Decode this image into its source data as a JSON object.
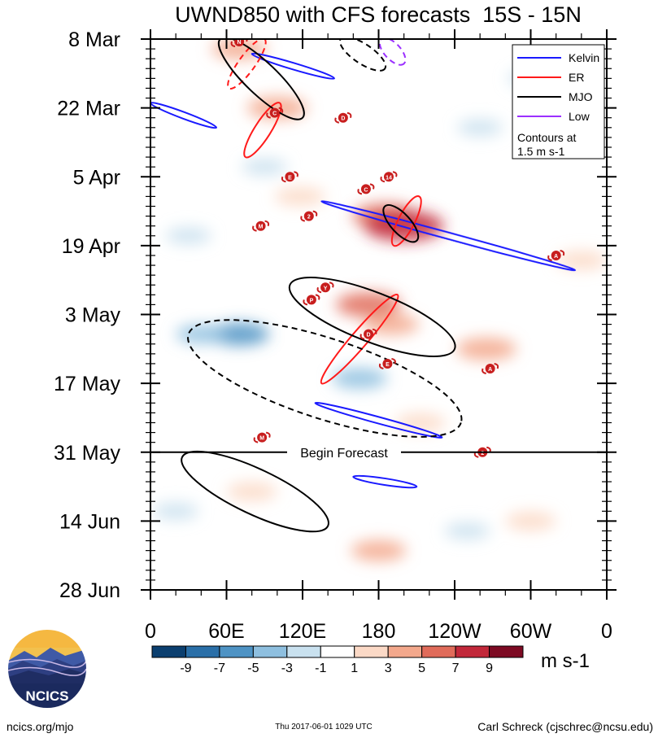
{
  "chart_data": {
    "type": "heatmap",
    "title": "UWND850 with CFS forecasts  15S - 15N",
    "y_tick_labels": [
      "8 Mar",
      "22 Mar",
      "5 Apr",
      "19 Apr",
      "3 May",
      "17 May",
      "31 May",
      "14 Jun",
      "28 Jun"
    ],
    "x_tick_labels": [
      "0",
      "60E",
      "120E",
      "180",
      "120W",
      "60W",
      "0"
    ],
    "xlim_deg_east": [
      0,
      360
    ],
    "x_ticks_deg_east": [
      0,
      60,
      120,
      180,
      240,
      300,
      360
    ],
    "y_range_days_from_8_Mar": [
      0,
      112
    ],
    "forecast_start_days": 84,
    "forecast_label": "Begin Forecast",
    "colorbar": {
      "units": "m s-1",
      "levels": [
        -9,
        -7,
        -5,
        -3,
        -1,
        1,
        3,
        5,
        7,
        9
      ],
      "tick_labels": [
        "-9",
        "-7",
        "-5",
        "-3",
        "-1",
        "1",
        "3",
        "5",
        "7",
        "9"
      ],
      "colors": [
        "#0b3f6f",
        "#2a6fa8",
        "#4e93c4",
        "#8ebfdf",
        "#c9e1ef",
        "#ffffff",
        "#fbd9c6",
        "#f3a88c",
        "#e06b5a",
        "#c2283a",
        "#7d0a23"
      ]
    },
    "legend": {
      "placement": "top-right",
      "entries": [
        {
          "label": "Kelvin",
          "color": "#1a1aff"
        },
        {
          "label": "ER",
          "color": "#ff1a1a"
        },
        {
          "label": "MJO",
          "color": "#000000"
        },
        {
          "label": "Low",
          "color": "#9b30ff"
        }
      ],
      "note_line1": "Contours at",
      "note_line2": "1.5 m s-1"
    },
    "anomaly_blobs": [
      {
        "lon": 70,
        "day": 2,
        "value": 4
      },
      {
        "lon": 100,
        "day": 14,
        "value": 5
      },
      {
        "lon": 118,
        "day": 32,
        "value": 3
      },
      {
        "lon": 185,
        "day": 36,
        "value": 6
      },
      {
        "lon": 200,
        "day": 38,
        "value": 9
      },
      {
        "lon": 172,
        "day": 54,
        "value": 6
      },
      {
        "lon": 190,
        "day": 58,
        "value": 4
      },
      {
        "lon": 265,
        "day": 63,
        "value": 5
      },
      {
        "lon": 340,
        "day": 45,
        "value": 3
      },
      {
        "lon": 213,
        "day": 78,
        "value": 3
      },
      {
        "lon": 70,
        "day": 60,
        "value": -5
      },
      {
        "lon": 40,
        "day": 60,
        "value": -3
      },
      {
        "lon": 165,
        "day": 69,
        "value": -4
      },
      {
        "lon": 90,
        "day": 26,
        "value": -2
      },
      {
        "lon": 260,
        "day": 18,
        "value": -2
      },
      {
        "lon": 300,
        "day": 8,
        "value": -2
      },
      {
        "lon": 30,
        "day": 40,
        "value": -2
      },
      {
        "lon": 80,
        "day": 92,
        "value": 3
      },
      {
        "lon": 180,
        "day": 104,
        "value": 4
      },
      {
        "lon": 300,
        "day": 98,
        "value": 3
      },
      {
        "lon": 250,
        "day": 100,
        "value": -2
      },
      {
        "lon": 20,
        "day": 96,
        "value": -2
      }
    ],
    "contours": [
      {
        "wave": "Kelvin",
        "color": "#1a1aff",
        "style": "solid",
        "points": [
          [
            80,
            3
          ],
          [
            145,
            8
          ]
        ]
      },
      {
        "wave": "Kelvin",
        "color": "#1a1aff",
        "style": "solid",
        "points": [
          [
            0,
            13
          ],
          [
            52,
            18
          ]
        ]
      },
      {
        "wave": "Kelvin",
        "color": "#1a1aff",
        "style": "solid",
        "points": [
          [
            135,
            33
          ],
          [
            335,
            47
          ]
        ]
      },
      {
        "wave": "Kelvin",
        "color": "#1a1aff",
        "style": "solid",
        "points": [
          [
            130,
            74
          ],
          [
            230,
            81
          ]
        ]
      },
      {
        "wave": "Kelvin",
        "color": "#1a1aff",
        "style": "solid",
        "points": [
          [
            160,
            89
          ],
          [
            210,
            91
          ]
        ]
      },
      {
        "wave": "ER",
        "color": "#ff1a1a",
        "style": "dashed",
        "points": [
          [
            62,
            10
          ],
          [
            90,
            0
          ]
        ]
      },
      {
        "wave": "ER",
        "color": "#ff1a1a",
        "style": "solid",
        "points": [
          [
            75,
            24
          ],
          [
            102,
            13
          ]
        ]
      },
      {
        "wave": "ER",
        "color": "#ff1a1a",
        "style": "solid",
        "points": [
          [
            192,
            42
          ],
          [
            212,
            32
          ]
        ]
      },
      {
        "wave": "ER",
        "color": "#ff1a1a",
        "style": "solid",
        "points": [
          [
            135,
            70
          ],
          [
            195,
            52
          ]
        ]
      },
      {
        "wave": "MJO",
        "color": "#000000",
        "style": "solid",
        "points": [
          [
            55,
            0
          ],
          [
            120,
            16
          ]
        ]
      },
      {
        "wave": "MJO",
        "color": "#000000",
        "style": "solid",
        "points": [
          [
            185,
            34
          ],
          [
            210,
            41
          ]
        ]
      },
      {
        "wave": "MJO",
        "color": "#000000",
        "style": "solid",
        "points": [
          [
            110,
            50
          ],
          [
            240,
            63
          ]
        ]
      },
      {
        "wave": "MJO",
        "color": "#000000",
        "style": "dashed",
        "points": [
          [
            30,
            60
          ],
          [
            245,
            78
          ]
        ]
      },
      {
        "wave": "MJO",
        "color": "#000000",
        "style": "solid",
        "points": [
          [
            25,
            85
          ],
          [
            140,
            99
          ]
        ]
      },
      {
        "wave": "MJO",
        "color": "#000000",
        "style": "dashed",
        "points": [
          [
            150,
            0
          ],
          [
            185,
            6
          ]
        ]
      },
      {
        "wave": "Low",
        "color": "#9b30ff",
        "style": "dashed",
        "points": [
          [
            182,
            0
          ],
          [
            200,
            5
          ]
        ]
      }
    ],
    "storm_markers": [
      {
        "lon": 70,
        "day": 0.5,
        "label": "N"
      },
      {
        "lon": 98,
        "day": 15,
        "label": "C"
      },
      {
        "lon": 152,
        "day": 16,
        "label": "D"
      },
      {
        "lon": 110,
        "day": 28,
        "label": "E"
      },
      {
        "lon": 188,
        "day": 28,
        "label": "14"
      },
      {
        "lon": 170,
        "day": 30.5,
        "label": "C"
      },
      {
        "lon": 125,
        "day": 36,
        "label": "2"
      },
      {
        "lon": 87,
        "day": 38,
        "label": "M"
      },
      {
        "lon": 320,
        "day": 44,
        "label": "A"
      },
      {
        "lon": 138,
        "day": 50.5,
        "label": "Y"
      },
      {
        "lon": 127,
        "day": 53,
        "label": "P"
      },
      {
        "lon": 172,
        "day": 60,
        "label": "D"
      },
      {
        "lon": 187,
        "day": 66,
        "label": "E"
      },
      {
        "lon": 268,
        "day": 67,
        "label": "A"
      },
      {
        "lon": 88,
        "day": 81,
        "label": "M"
      },
      {
        "lon": 262,
        "day": 84,
        "label": "2"
      }
    ]
  },
  "branding": {
    "logo_text": "NCICS",
    "site": "ncics.org/mjo",
    "timestamp": "Thu 2017-06-01 1029 UTC",
    "author": "Carl Schreck (cjschrec@ncsu.edu)"
  }
}
